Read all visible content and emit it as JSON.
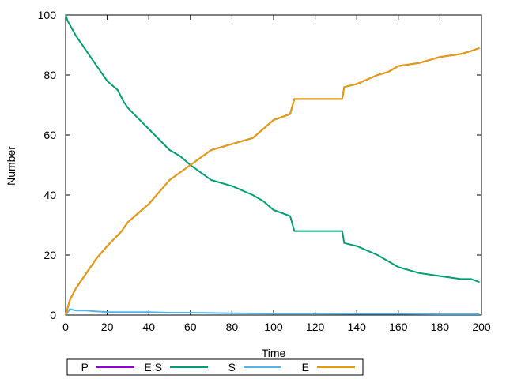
{
  "chart_data": {
    "type": "line",
    "title": "",
    "xlabel": "Time",
    "ylabel": "Number",
    "xlim": [
      0,
      200
    ],
    "ylim": [
      0,
      100
    ],
    "xticks": [
      0,
      20,
      40,
      60,
      80,
      100,
      120,
      140,
      160,
      180,
      200
    ],
    "yticks": [
      0,
      20,
      40,
      60,
      80,
      100
    ],
    "grid": false,
    "legend_position": "bottom-left",
    "series": [
      {
        "name": "P",
        "color": "#9400d3",
        "x": [
          0,
          2,
          5,
          10,
          15,
          20,
          27,
          30,
          40,
          50,
          60,
          70,
          80,
          90,
          95,
          100,
          108,
          110,
          120,
          133,
          134,
          140,
          150,
          155,
          160,
          170,
          180,
          190,
          195,
          199
        ],
        "y": [
          0,
          5,
          9,
          14,
          19,
          23,
          28,
          31,
          37,
          45,
          50,
          55,
          57,
          59,
          62,
          65,
          67,
          72,
          72,
          72,
          76,
          77,
          80,
          81,
          83,
          84,
          86,
          87,
          88,
          89
        ]
      },
      {
        "name": "E:S",
        "color": "#009e73",
        "x": [
          0,
          1,
          5,
          10,
          15,
          20,
          25,
          28,
          30,
          40,
          50,
          55,
          60,
          70,
          80,
          90,
          95,
          100,
          108,
          110,
          120,
          133,
          134,
          140,
          150,
          155,
          160,
          170,
          180,
          190,
          195,
          199
        ],
        "y": [
          100,
          98,
          93,
          88,
          83,
          78,
          75,
          71,
          69,
          62,
          55,
          53,
          50,
          45,
          43,
          40,
          38,
          35,
          33,
          28,
          28,
          28,
          24,
          23,
          20,
          18,
          16,
          14,
          13,
          12,
          12,
          11
        ]
      },
      {
        "name": "S",
        "color": "#56b4e9",
        "x": [
          0,
          2,
          5,
          10,
          15,
          20,
          30,
          40,
          50,
          60,
          80,
          100,
          120,
          140,
          160,
          180,
          199
        ],
        "y": [
          0,
          2,
          1.5,
          1.5,
          1.2,
          1,
          1,
          1,
          0.8,
          0.8,
          0.6,
          0.5,
          0.5,
          0.4,
          0.4,
          0.3,
          0.3
        ]
      },
      {
        "name": "E",
        "color": "#e69f00",
        "x": [
          0,
          2,
          5,
          10,
          15,
          20,
          27,
          30,
          40,
          50,
          60,
          70,
          80,
          90,
          95,
          100,
          108,
          110,
          120,
          133,
          134,
          140,
          150,
          155,
          160,
          170,
          180,
          190,
          195,
          199
        ],
        "y": [
          0,
          5,
          9,
          14,
          19,
          23,
          28,
          31,
          37,
          45,
          50,
          55,
          57,
          59,
          62,
          65,
          67,
          72,
          72,
          72,
          76,
          77,
          80,
          81,
          83,
          84,
          86,
          87,
          88,
          89
        ]
      }
    ]
  }
}
